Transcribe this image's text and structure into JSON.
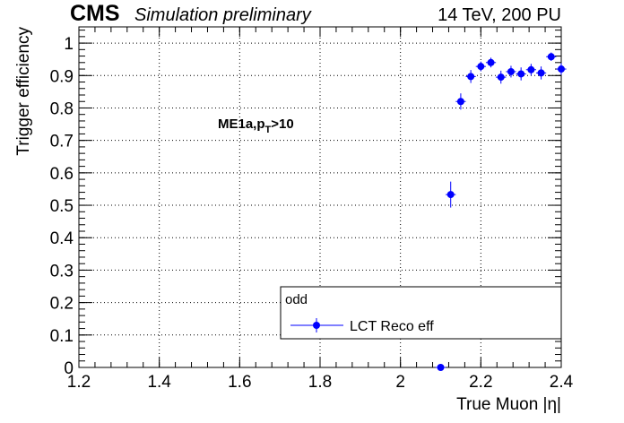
{
  "header": {
    "experiment": "CMS",
    "status": "Simulation preliminary",
    "conditions": "14 TeV, 200 PU"
  },
  "annotation": {
    "base": "ME1a,p",
    "sub": "T",
    "tail": ">10"
  },
  "legend": {
    "title": "odd",
    "entry": "LCT Reco eff"
  },
  "colors": {
    "marker": "#0000ff",
    "axis": "#000000",
    "grid": "#000000"
  },
  "chart_data": {
    "type": "scatter",
    "xlabel": "True Muon |η|",
    "ylabel": "Trigger efficiency",
    "xlim": [
      1.2,
      2.4
    ],
    "ylim": [
      0,
      1.05
    ],
    "xticks": [
      1.2,
      1.4,
      1.6,
      1.8,
      2.0,
      2.2,
      2.4
    ],
    "xtick_labels": [
      "1.2",
      "1.4",
      "1.6",
      "1.8",
      "2",
      "2.2",
      "2.4"
    ],
    "yticks": [
      0,
      0.1,
      0.2,
      0.3,
      0.4,
      0.5,
      0.6,
      0.7,
      0.8,
      0.9,
      1.0
    ],
    "ytick_labels": [
      "0",
      "0.1",
      "0.2",
      "0.3",
      "0.4",
      "0.5",
      "0.6",
      "0.7",
      "0.8",
      "0.9",
      "1"
    ],
    "grid": true,
    "legend_position": "bottom-right",
    "series": [
      {
        "name": "LCT Reco eff",
        "x": [
          2.1,
          2.125,
          2.15,
          2.175,
          2.2,
          2.225,
          2.25,
          2.275,
          2.3,
          2.325,
          2.35,
          2.375,
          2.4
        ],
        "y": [
          0.0,
          0.533,
          0.82,
          0.897,
          0.928,
          0.94,
          0.895,
          0.912,
          0.905,
          0.918,
          0.908,
          0.958,
          0.92
        ],
        "yerr": [
          0.0,
          0.04,
          0.025,
          0.02,
          0.015,
          0.015,
          0.02,
          0.018,
          0.02,
          0.018,
          0.02,
          0.013,
          0.018
        ],
        "xerr": 0.0125
      }
    ]
  }
}
